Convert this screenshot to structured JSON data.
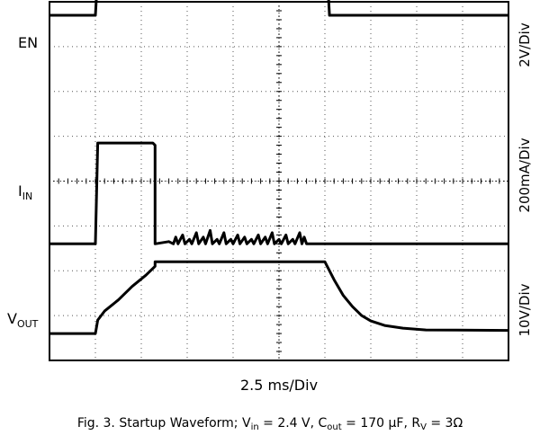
{
  "chart_data": {
    "type": "line",
    "xlabel": "2.5 ms/Div",
    "grid": true,
    "divisions": {
      "x": 10,
      "y": 8
    },
    "x_units": "div",
    "y_units": "div",
    "xlim": [
      0,
      10
    ],
    "ylim": [
      0,
      8
    ],
    "caption": {
      "prefix": "Fig. 3. Startup Waveform; V",
      "vin_sub": "in",
      "vin_val": " = 2.4 V, C",
      "cout_sub": "out",
      "cout_val": " = 170 µF, R",
      "rv_sub": "V",
      "rv_val": " = 3Ω"
    },
    "channels": [
      {
        "name": "EN",
        "label_main": "EN",
        "label_sub": "",
        "scale": "2V/Div",
        "color": "#000000",
        "points": [
          [
            0,
            7.7
          ],
          [
            1.0,
            7.7
          ],
          [
            1.05,
            8.6
          ],
          [
            6.05,
            8.6
          ],
          [
            6.1,
            7.7
          ],
          [
            10,
            7.7
          ]
        ]
      },
      {
        "name": "IN",
        "label_main": "I",
        "label_sub": "IN",
        "scale": "200mA/Div",
        "color": "#000000",
        "points": [
          [
            0,
            2.6
          ],
          [
            1.0,
            2.6
          ],
          [
            1.05,
            4.85
          ],
          [
            2.25,
            4.85
          ],
          [
            2.3,
            4.8
          ],
          [
            2.3,
            2.6
          ],
          [
            2.6,
            2.65
          ],
          [
            2.7,
            2.6
          ],
          [
            2.75,
            2.75
          ],
          [
            2.8,
            2.6
          ],
          [
            2.9,
            2.8
          ],
          [
            2.95,
            2.6
          ],
          [
            3.05,
            2.7
          ],
          [
            3.1,
            2.6
          ],
          [
            3.2,
            2.85
          ],
          [
            3.25,
            2.6
          ],
          [
            3.35,
            2.75
          ],
          [
            3.4,
            2.6
          ],
          [
            3.5,
            2.9
          ],
          [
            3.55,
            2.6
          ],
          [
            3.65,
            2.7
          ],
          [
            3.7,
            2.6
          ],
          [
            3.8,
            2.85
          ],
          [
            3.85,
            2.6
          ],
          [
            3.95,
            2.7
          ],
          [
            4.0,
            2.6
          ],
          [
            4.1,
            2.8
          ],
          [
            4.15,
            2.6
          ],
          [
            4.25,
            2.75
          ],
          [
            4.3,
            2.6
          ],
          [
            4.4,
            2.7
          ],
          [
            4.45,
            2.6
          ],
          [
            4.55,
            2.8
          ],
          [
            4.6,
            2.6
          ],
          [
            4.7,
            2.75
          ],
          [
            4.75,
            2.6
          ],
          [
            4.85,
            2.85
          ],
          [
            4.9,
            2.6
          ],
          [
            5.0,
            2.7
          ],
          [
            5.05,
            2.6
          ],
          [
            5.15,
            2.8
          ],
          [
            5.2,
            2.6
          ],
          [
            5.3,
            2.7
          ],
          [
            5.35,
            2.6
          ],
          [
            5.45,
            2.85
          ],
          [
            5.5,
            2.6
          ],
          [
            5.55,
            2.75
          ],
          [
            5.6,
            2.6
          ],
          [
            10,
            2.6
          ]
        ]
      },
      {
        "name": "VOUT",
        "label_main": "V",
        "label_sub": "OUT",
        "scale": "10V/Div",
        "color": "#000000",
        "points": [
          [
            0,
            0.6
          ],
          [
            1.0,
            0.6
          ],
          [
            1.05,
            0.9
          ],
          [
            1.2,
            1.1
          ],
          [
            1.5,
            1.35
          ],
          [
            1.8,
            1.65
          ],
          [
            2.1,
            1.9
          ],
          [
            2.3,
            2.1
          ],
          [
            2.3,
            2.2
          ],
          [
            6.0,
            2.2
          ],
          [
            6.2,
            1.8
          ],
          [
            6.4,
            1.45
          ],
          [
            6.6,
            1.2
          ],
          [
            6.8,
            1.0
          ],
          [
            7.0,
            0.88
          ],
          [
            7.3,
            0.78
          ],
          [
            7.7,
            0.72
          ],
          [
            8.2,
            0.68
          ],
          [
            10,
            0.67
          ]
        ]
      }
    ]
  }
}
